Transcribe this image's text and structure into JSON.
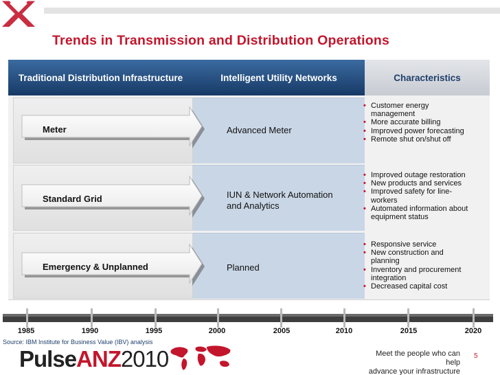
{
  "title": "Trends in Transmission and Distribution Operations",
  "headers": {
    "traditional": "Traditional Distribution Infrastructure",
    "intelligent": "Intelligent Utility Networks",
    "characteristics": "Characteristics"
  },
  "rows": [
    {
      "from": "Meter",
      "to": "Advanced Meter",
      "bullets": [
        "Customer energy management",
        "More accurate billing",
        "Improved power forecasting",
        "Remote shut on/shut off"
      ]
    },
    {
      "from": "Standard Grid",
      "to_line1": "IUN & Network Automation",
      "to_line2": "and Analytics",
      "bullets": [
        "Improved outage restoration",
        "New products and services",
        "Improved safety for line-workers",
        "Automated information about equipment status"
      ]
    },
    {
      "from": "Emergency & Unplanned",
      "to": "Planned",
      "bullets": [
        "Responsive service",
        "New construction and planning",
        "Inventory and procurement integration",
        "Decreased capital cost"
      ]
    }
  ],
  "timeline": [
    "1985",
    "1990",
    "1995",
    "2000",
    "2005",
    "2010",
    "2015",
    "2020"
  ],
  "source": "Source: IBM Institute for Business Value (IBV) analysis",
  "footer": {
    "brand_pulse": "Pulse",
    "brand_anz": "ANZ",
    "brand_year": "2010",
    "tagline_line1": "Meet the people who can help",
    "tagline_line2": "advance your infrastructure",
    "page_number": "5"
  },
  "colors": {
    "accent_red": "#c3162c",
    "header_blue": "#173a66",
    "intelligent_column": "#c9d6e6"
  }
}
